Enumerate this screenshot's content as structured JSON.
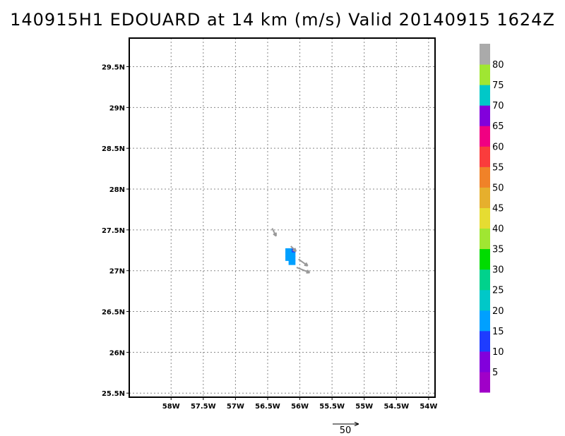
{
  "title": "140915H1 EDOUARD at 14 km (m/s) Valid 20140915 1624Z",
  "map": {
    "lon_range": [
      -58.65,
      -53.9
    ],
    "lat_range": [
      25.45,
      29.85
    ],
    "lon_ticks": [
      {
        "value": -58.0,
        "label": "58W"
      },
      {
        "value": -57.5,
        "label": "57.5W"
      },
      {
        "value": -57.0,
        "label": "57W"
      },
      {
        "value": -56.5,
        "label": "56.5W"
      },
      {
        "value": -56.0,
        "label": "56W"
      },
      {
        "value": -55.5,
        "label": "55.5W"
      },
      {
        "value": -55.0,
        "label": "55W"
      },
      {
        "value": -54.5,
        "label": "54.5W"
      },
      {
        "value": -54.0,
        "label": "54W"
      }
    ],
    "lat_ticks": [
      {
        "value": 25.5,
        "label": "25.5N"
      },
      {
        "value": 26.0,
        "label": "26N"
      },
      {
        "value": 26.5,
        "label": "26.5N"
      },
      {
        "value": 27.0,
        "label": "27N"
      },
      {
        "value": 27.5,
        "label": "27.5N"
      },
      {
        "value": 28.0,
        "label": "28N"
      },
      {
        "value": 28.5,
        "label": "28.5N"
      },
      {
        "value": 29.0,
        "label": "29N"
      },
      {
        "value": 29.5,
        "label": "29.5N"
      }
    ],
    "grid": true
  },
  "wind_cells": [
    {
      "lon": -56.2,
      "lat": 27.25,
      "value": 17
    },
    {
      "lon": -56.15,
      "lat": 27.25,
      "value": 17
    },
    {
      "lon": -56.1,
      "lat": 27.25,
      "value": 12
    },
    {
      "lon": -56.2,
      "lat": 27.2,
      "value": 16
    },
    {
      "lon": -56.15,
      "lat": 27.2,
      "value": 18
    },
    {
      "lon": -56.1,
      "lat": 27.2,
      "value": 16
    },
    {
      "lon": -56.2,
      "lat": 27.15,
      "value": 15
    },
    {
      "lon": -56.15,
      "lat": 27.15,
      "value": 16
    },
    {
      "lon": -56.1,
      "lat": 27.15,
      "value": 17
    },
    {
      "lon": -56.15,
      "lat": 27.1,
      "value": 16
    },
    {
      "lon": -56.1,
      "lat": 27.1,
      "value": 15
    }
  ],
  "wind_vectors": [
    {
      "lon": -56.43,
      "lat": 27.52,
      "u": 3,
      "v": -6
    },
    {
      "lon": -56.02,
      "lat": 27.14,
      "u": 7,
      "v": -5
    },
    {
      "lon": -56.05,
      "lat": 27.04,
      "u": 10,
      "v": -4
    },
    {
      "lon": -56.14,
      "lat": 27.3,
      "u": 4,
      "v": -4
    }
  ],
  "reference_vector": {
    "label": "50",
    "speed": 50
  },
  "colorbar": {
    "bins": [
      {
        "from": 0,
        "to": 5,
        "color": "#a000c8"
      },
      {
        "from": 5,
        "to": 10,
        "color": "#8200dc"
      },
      {
        "from": 10,
        "to": 15,
        "color": "#1e3cff"
      },
      {
        "from": 15,
        "to": 20,
        "color": "#00a0ff"
      },
      {
        "from": 20,
        "to": 25,
        "color": "#00c8c8"
      },
      {
        "from": 25,
        "to": 30,
        "color": "#00d28c"
      },
      {
        "from": 30,
        "to": 35,
        "color": "#00dc00"
      },
      {
        "from": 35,
        "to": 40,
        "color": "#a0e632"
      },
      {
        "from": 40,
        "to": 45,
        "color": "#e6dc32"
      },
      {
        "from": 45,
        "to": 50,
        "color": "#e6af2d"
      },
      {
        "from": 50,
        "to": 55,
        "color": "#f08228"
      },
      {
        "from": 55,
        "to": 60,
        "color": "#fa3c3c"
      },
      {
        "from": 60,
        "to": 65,
        "color": "#f00082"
      },
      {
        "from": 65,
        "to": 70,
        "color": "#8200dc"
      },
      {
        "from": 70,
        "to": 75,
        "color": "#00c8c8"
      },
      {
        "from": 75,
        "to": 80,
        "color": "#a0e632"
      },
      {
        "from": 80,
        "to": 85,
        "color": "#aaaaaa"
      }
    ],
    "labels": [
      "5",
      "10",
      "15",
      "20",
      "25",
      "30",
      "35",
      "40",
      "45",
      "50",
      "55",
      "60",
      "65",
      "70",
      "75",
      "80"
    ]
  }
}
